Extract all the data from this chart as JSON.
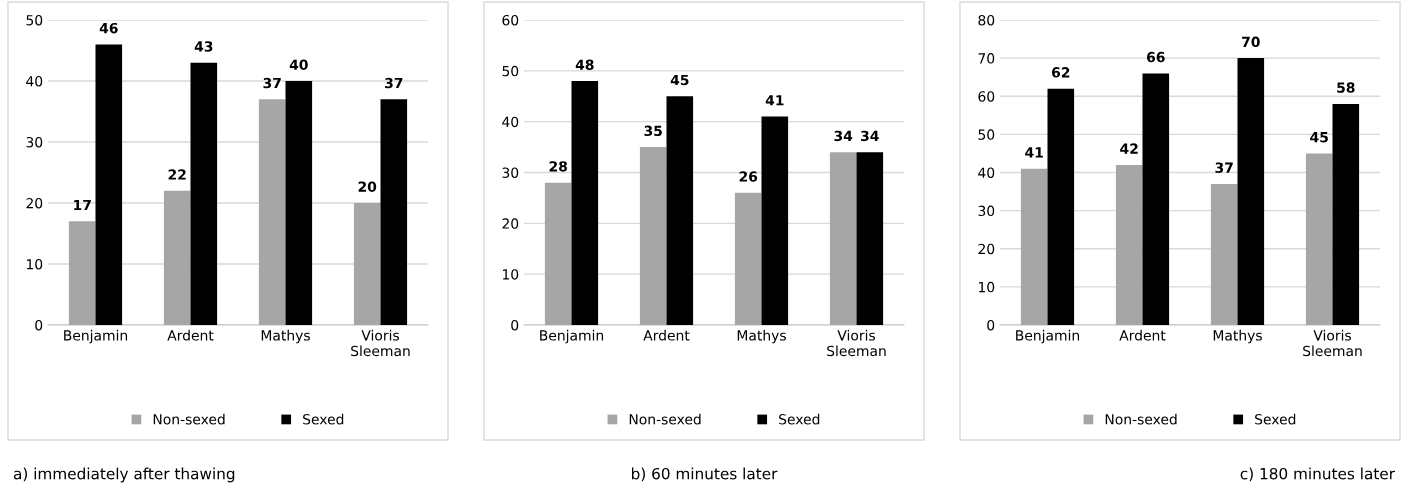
{
  "chart_data": [
    {
      "type": "bar",
      "categories": [
        "Benjamin",
        "Ardent",
        "Mathys",
        "Vioris\nSleeman"
      ],
      "series": [
        {
          "name": "Non-sexed",
          "color": "#a6a6a6",
          "values": [
            17,
            22,
            37,
            20
          ]
        },
        {
          "name": "Sexed",
          "color": "#000000",
          "values": [
            46,
            43,
            40,
            37
          ]
        }
      ],
      "ylim": [
        0,
        50
      ],
      "yticks": [
        0,
        10,
        20,
        30,
        40,
        50
      ],
      "grid": "y",
      "legend": "bottom",
      "data_labels": true,
      "annotations": [
        "a) immediately after thawing"
      ]
    },
    {
      "type": "bar",
      "categories": [
        "Benjamin",
        "Ardent",
        "Mathys",
        "Vioris\nSleeman"
      ],
      "series": [
        {
          "name": "Non-sexed",
          "color": "#a6a6a6",
          "values": [
            28,
            35,
            26,
            34
          ]
        },
        {
          "name": "Sexed",
          "color": "#000000",
          "values": [
            48,
            45,
            41,
            34
          ]
        }
      ],
      "ylim": [
        0,
        60
      ],
      "yticks": [
        0,
        10,
        20,
        30,
        40,
        50,
        60
      ],
      "grid": "y",
      "legend": "bottom",
      "data_labels": true,
      "annotations": [
        "b) 60 minutes later"
      ]
    },
    {
      "type": "bar",
      "categories": [
        "Benjamin",
        "Ardent",
        "Mathys",
        "Vioris\nSleeman"
      ],
      "series": [
        {
          "name": "Non-sexed",
          "color": "#a6a6a6",
          "values": [
            41,
            42,
            37,
            45
          ]
        },
        {
          "name": "Sexed",
          "color": "#000000",
          "values": [
            62,
            66,
            70,
            58
          ]
        }
      ],
      "ylim": [
        0,
        80
      ],
      "yticks": [
        0,
        10,
        20,
        30,
        40,
        50,
        60,
        70,
        80
      ],
      "grid": "y",
      "legend": "bottom",
      "data_labels": true,
      "annotations": [
        "c) 180 minutes later"
      ]
    }
  ]
}
